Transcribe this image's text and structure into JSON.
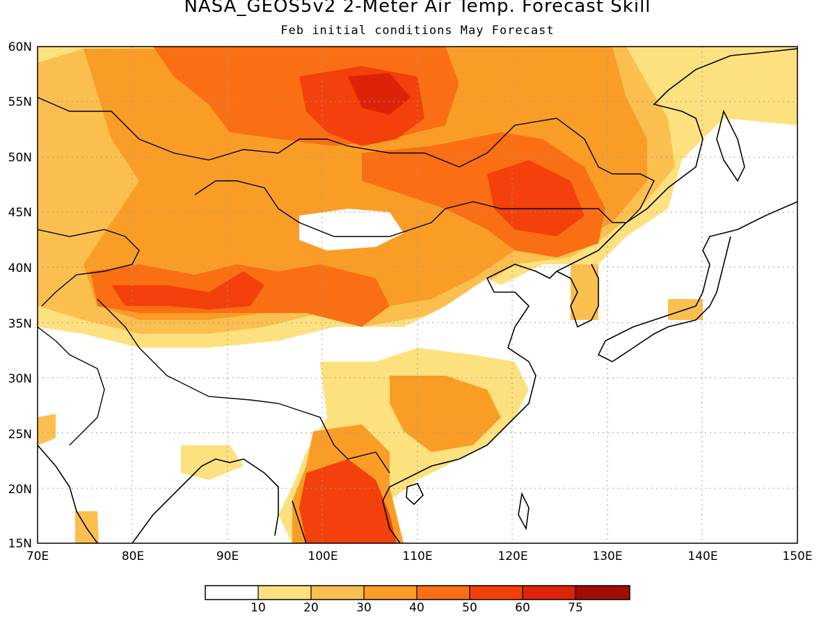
{
  "title": "NASA_GEOS5v2 2-Meter Air Temp. Forecast Skill",
  "subtitle": "Feb initial conditions   May Forecast",
  "map": {
    "projection": "lat-lon",
    "lon_range": [
      70,
      150
    ],
    "lat_range": [
      15,
      60
    ],
    "lat_labels": [
      "60N",
      "55N",
      "50N",
      "45N",
      "40N",
      "35N",
      "30N",
      "25N",
      "20N",
      "15N"
    ],
    "lon_labels": [
      "70E",
      "80E",
      "90E",
      "100E",
      "110E",
      "120E",
      "130E",
      "140E",
      "150E"
    ],
    "grid": "dotted"
  },
  "colorbar": {
    "colors": [
      "#ffffff",
      "#fee17f",
      "#fbbf4f",
      "#fa9d26",
      "#fa6f13",
      "#f4400a",
      "#dc2307",
      "#a30b05"
    ],
    "labels": [
      "10",
      "20",
      "30",
      "40",
      "50",
      "60",
      "75"
    ]
  }
}
